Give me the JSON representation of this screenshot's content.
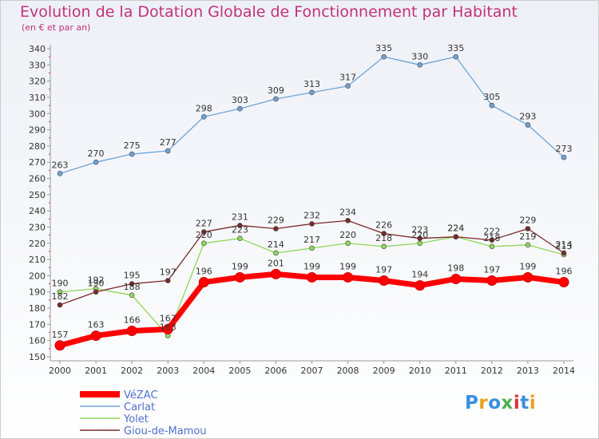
{
  "header": {
    "title": "Evolution de la Dotation Globale de Fonctionnement par Habitant",
    "subtitle": "(en € et par an)"
  },
  "chart_data": {
    "type": "line",
    "title": "Evolution de la Dotation Globale de Fonctionnement par Habitant",
    "subtitle": "(en € et par an)",
    "xlabel": "",
    "ylabel": "",
    "x": [
      "2000",
      "2001",
      "2002",
      "2003",
      "2004",
      "2005",
      "2006",
      "2007",
      "2008",
      "2009",
      "2010",
      "2011",
      "2012",
      "2013",
      "2014"
    ],
    "ylim": [
      150,
      340
    ],
    "yticks": [
      150,
      160,
      170,
      180,
      190,
      200,
      210,
      220,
      230,
      240,
      250,
      260,
      270,
      280,
      290,
      300,
      310,
      320,
      330,
      340
    ],
    "grid": false,
    "legend_position": "bottom-left",
    "series": [
      {
        "name": "VéZAC",
        "color": "#ff0000",
        "values": [
          157,
          163,
          166,
          167,
          196,
          199,
          201,
          199,
          199,
          197,
          194,
          198,
          197,
          199,
          196
        ]
      },
      {
        "name": "Carlat",
        "color": "#6ea3d8",
        "values": [
          263,
          270,
          275,
          277,
          298,
          303,
          309,
          313,
          317,
          335,
          330,
          335,
          305,
          293,
          273
        ]
      },
      {
        "name": "Yolet",
        "color": "#8fd65a",
        "values": [
          190,
          192,
          188,
          163,
          220,
          223,
          214,
          217,
          220,
          218,
          220,
          224,
          218,
          219,
          213
        ]
      },
      {
        "name": "Giou-de-Mamou",
        "color": "#7a2a2a",
        "values": [
          182,
          190,
          195,
          197,
          227,
          231,
          229,
          232,
          234,
          226,
          223,
          224,
          222,
          229,
          214
        ]
      }
    ]
  },
  "logo": {
    "text": "Proxiti",
    "colors": [
      "#3a8ee0",
      "#e8a020",
      "#3a8ee0",
      "#4caf50",
      "#e0303a",
      "#3a8ee0",
      "#e8a020"
    ]
  }
}
